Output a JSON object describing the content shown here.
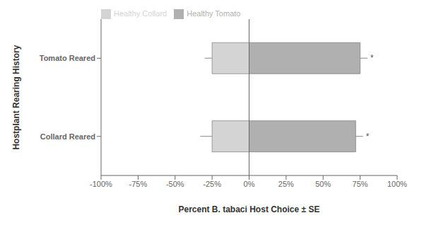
{
  "chart_data": {
    "type": "bar",
    "orientation": "horizontal",
    "categories": [
      "Tomato Reared",
      "Collard Reared"
    ],
    "series": [
      {
        "name": "Healthy Collard",
        "color": "#d4d4d4",
        "values": [
          -25,
          -25
        ],
        "errors": [
          5,
          8
        ]
      },
      {
        "name": "Healthy Tomato",
        "color": "#b0b0b0",
        "values": [
          75,
          72
        ],
        "errors": [
          5,
          5
        ]
      }
    ],
    "annotations": [
      "*",
      "*"
    ],
    "x_label": "Percent B. tabaci Host Choice ± SE",
    "y_label": "Hostplant Rearing History",
    "xlim": [
      -100,
      100
    ],
    "xticks": [
      {
        "value": -100,
        "label": "-100%"
      },
      {
        "value": -75,
        "label": "-75%"
      },
      {
        "value": -50,
        "label": "-50%"
      },
      {
        "value": -25,
        "label": "-25%"
      },
      {
        "value": 0,
        "label": "0%"
      },
      {
        "value": 25,
        "label": "25%"
      },
      {
        "value": 50,
        "label": "50%"
      },
      {
        "value": 75,
        "label": "75%"
      },
      {
        "value": 100,
        "label": "100%"
      }
    ],
    "legend": "upper left",
    "grid": false
  }
}
